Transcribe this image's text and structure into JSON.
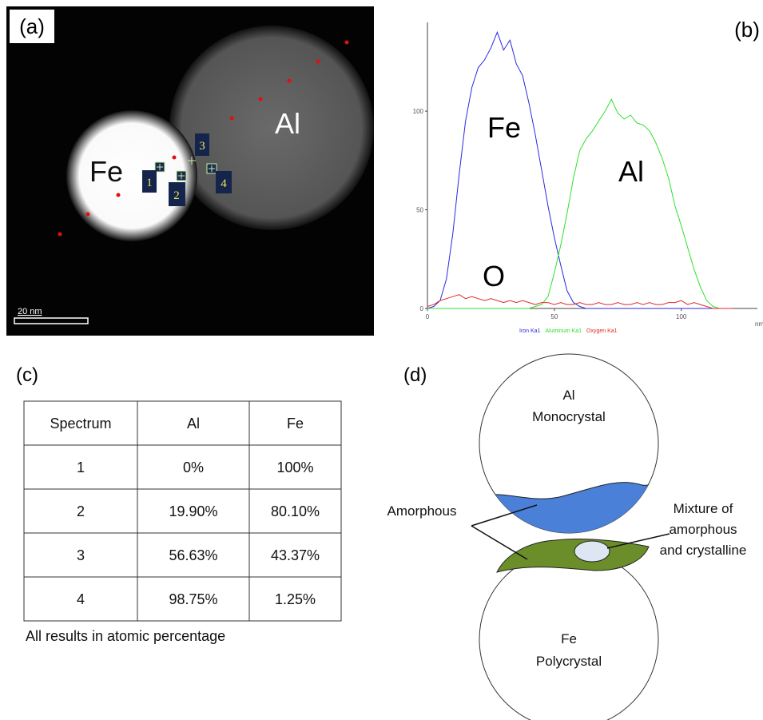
{
  "panels": {
    "a": "(a)",
    "b": "(b)",
    "c": "(c)",
    "d": "(d)"
  },
  "image": {
    "fe_label": "Fe",
    "al_label": "Al",
    "markers": [
      "1",
      "2",
      "3",
      "4"
    ],
    "scale_bar": "20 nm"
  },
  "chart_data": {
    "type": "line",
    "x": [
      0,
      2.5,
      5,
      7.5,
      10,
      12.5,
      15,
      17.5,
      20,
      22.5,
      25,
      27.5,
      30,
      32.5,
      35,
      37.5,
      40,
      42.5,
      45,
      47.5,
      50,
      52.5,
      55,
      57.5,
      60,
      62.5,
      65,
      67.5,
      70,
      72.5,
      75,
      77.5,
      80,
      82.5,
      85,
      87.5,
      90,
      92.5,
      95,
      97.5,
      100,
      102.5,
      105,
      107.5,
      110,
      112.5,
      115,
      117.5,
      120
    ],
    "series": [
      {
        "name": "Iron Ka1",
        "color": "#2a2ae0",
        "values": [
          0,
          1,
          4,
          15,
          38,
          68,
          95,
          112,
          122,
          126,
          132,
          140,
          131,
          136,
          124,
          118,
          104,
          88,
          70,
          52,
          36,
          22,
          9,
          3,
          1,
          0,
          0,
          0,
          0,
          0,
          0,
          0,
          0,
          0,
          0,
          0,
          0,
          0,
          0,
          0,
          0,
          0,
          0,
          0,
          0,
          0,
          0,
          0,
          0
        ]
      },
      {
        "name": "Aluminum Ka1",
        "color": "#2ee02e",
        "values": [
          0,
          0,
          0,
          0,
          0,
          0,
          0,
          0,
          0,
          0,
          0,
          0,
          0,
          0,
          0,
          0,
          0,
          1,
          2,
          6,
          18,
          32,
          48,
          66,
          80,
          86,
          90,
          95,
          100,
          106,
          99,
          96,
          98,
          94,
          93,
          90,
          84,
          76,
          66,
          52,
          42,
          31,
          20,
          11,
          4,
          1,
          0,
          0,
          0
        ]
      },
      {
        "name": "Oxygen Ka1",
        "color": "#e02a2a",
        "values": [
          1,
          2,
          4,
          5,
          6,
          7,
          5,
          6,
          5,
          4,
          5,
          4,
          3,
          4,
          3,
          4,
          3,
          2,
          3,
          3,
          2,
          3,
          2,
          2,
          3,
          2,
          2,
          3,
          2,
          2,
          3,
          2,
          2,
          3,
          2,
          3,
          2,
          2,
          3,
          3,
          4,
          2,
          3,
          2,
          1,
          0,
          0,
          0,
          0
        ]
      }
    ],
    "xlim": [
      0,
      130
    ],
    "ylim": [
      0,
      145
    ],
    "xticks": [
      0,
      50,
      100
    ],
    "yticks": [
      0,
      50,
      100
    ],
    "x_label": "nm",
    "annotations": [
      "Fe",
      "Al",
      "O"
    ]
  },
  "table": {
    "header": [
      "Spectrum",
      "Al",
      "Fe"
    ],
    "rows": [
      [
        "1",
        "0%",
        "100%"
      ],
      [
        "2",
        "19.90%",
        "80.10%"
      ],
      [
        "3",
        "56.63%",
        "43.37%"
      ],
      [
        "4",
        "98.75%",
        "1.25%"
      ]
    ],
    "note": "All results in atomic percentage"
  },
  "diagram": {
    "top": [
      "Al",
      "Monocrystal"
    ],
    "bottom": [
      "Fe",
      "Polycrystal"
    ],
    "amorphous": "Amorphous",
    "mixture": [
      "Mixture of",
      "amorphous",
      "and crystalline"
    ]
  }
}
